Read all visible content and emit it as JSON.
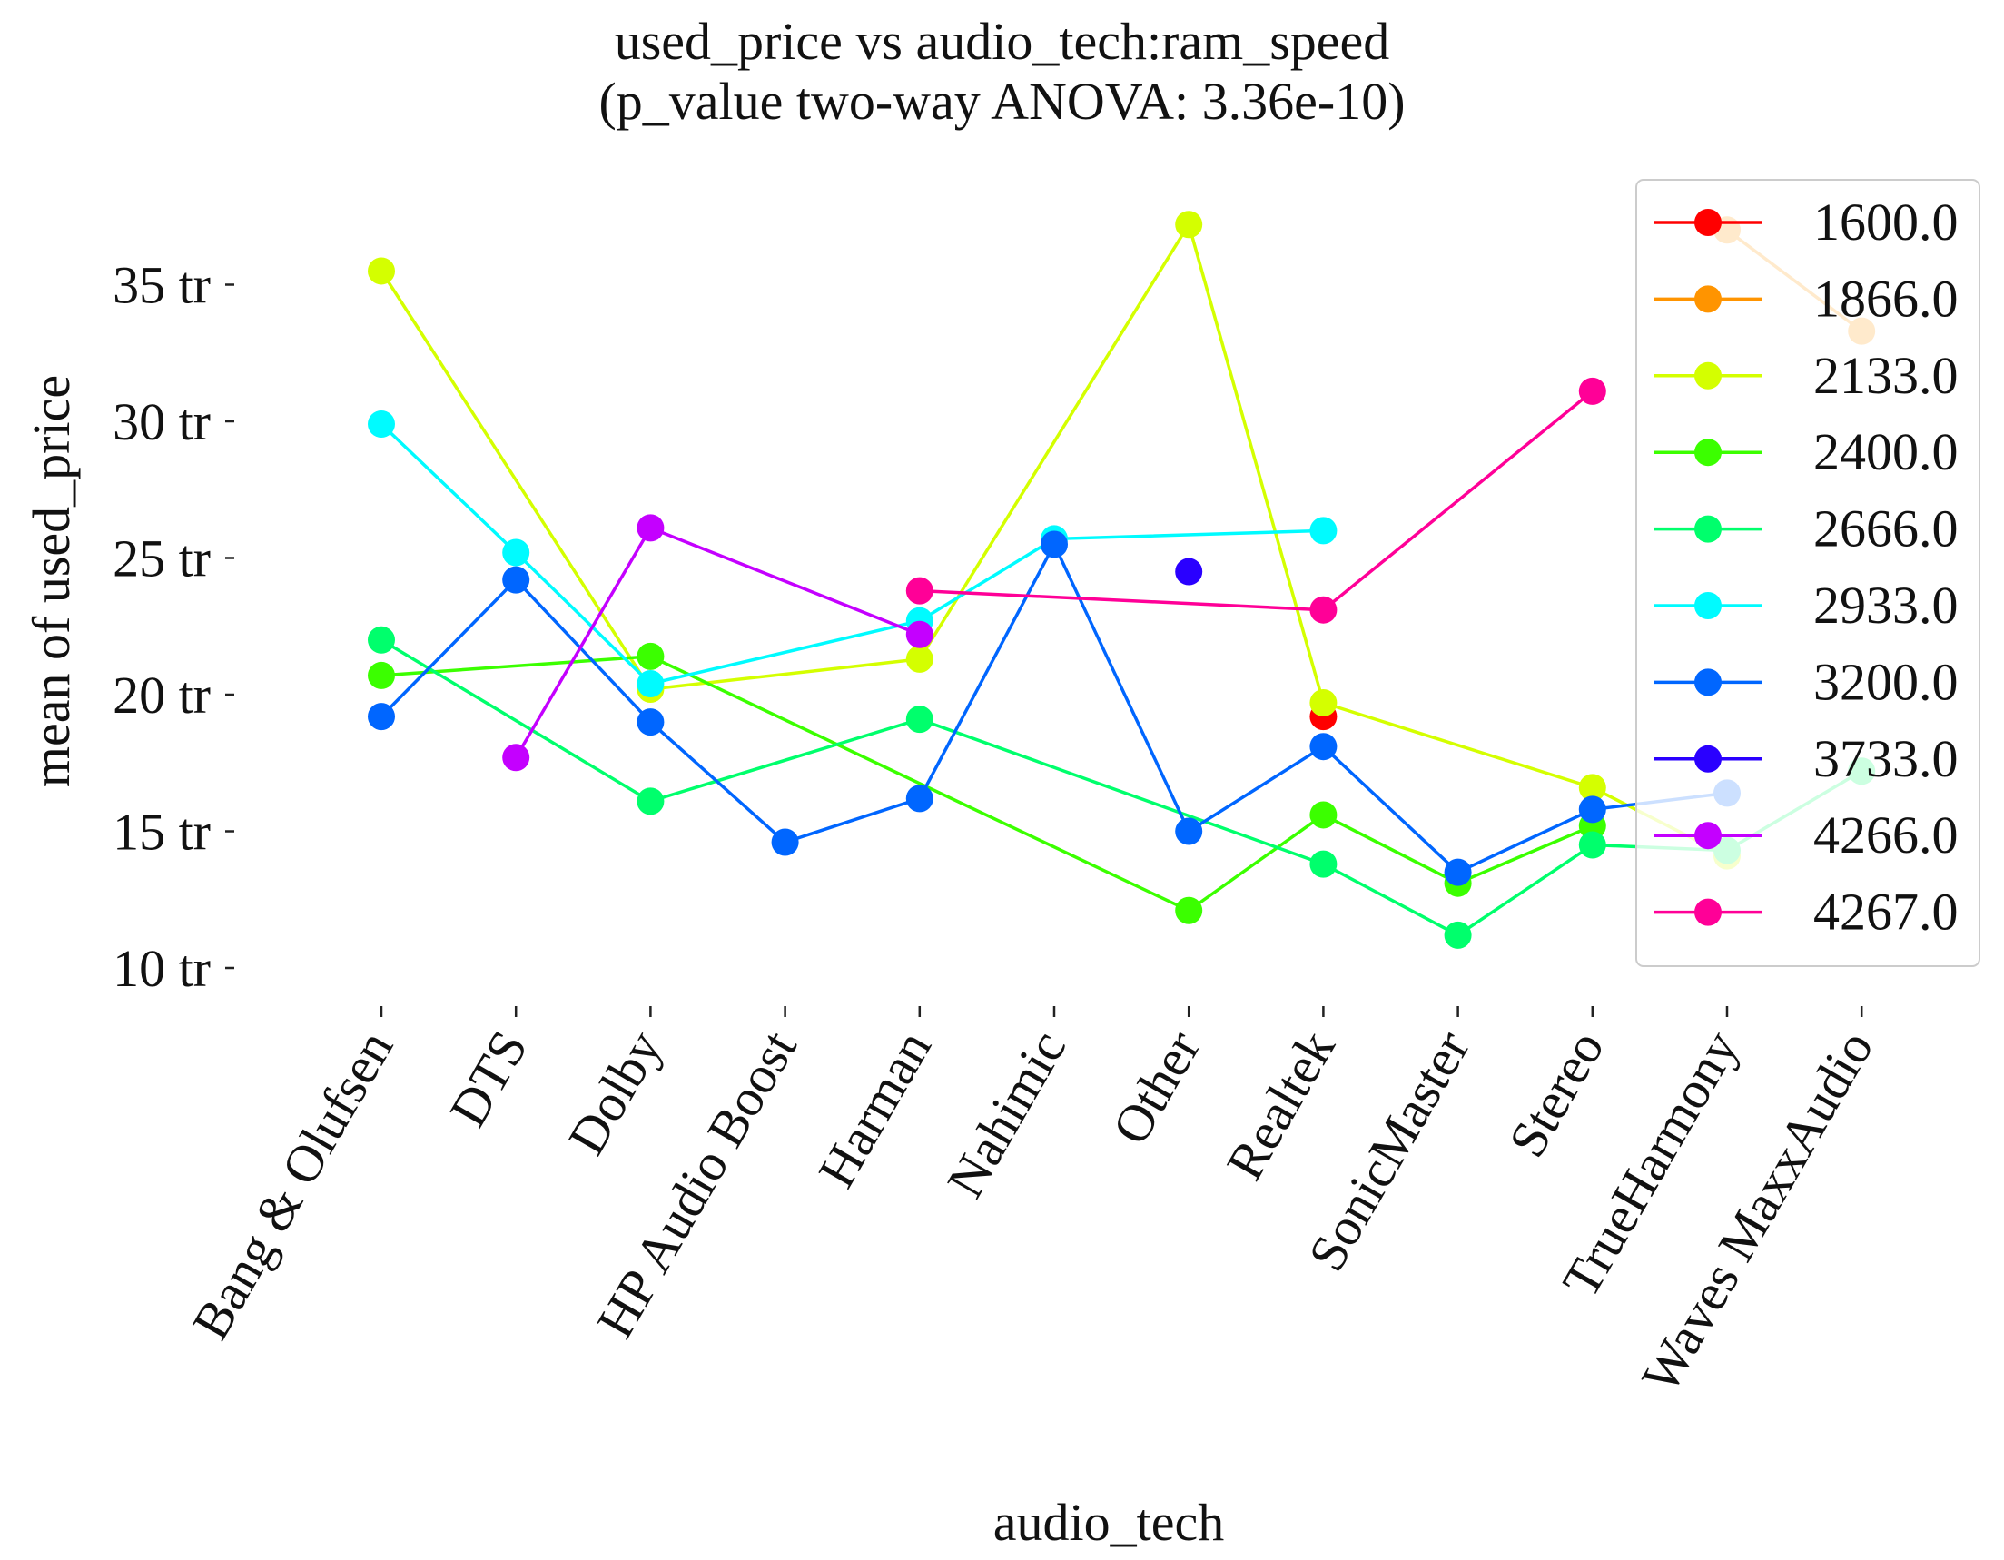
{
  "chart_data": {
    "type": "line",
    "title": "used_price vs audio_tech:ram_speed",
    "subtitle": "(p_value two-way ANOVA: 3.36e-10)",
    "xlabel": "audio_tech",
    "ylabel": "mean of used_price",
    "categories": [
      "Bang & Olufsen",
      "DTS",
      "Dolby",
      "HP Audio Boost",
      "Harman",
      "Nahimic",
      "Other",
      "Realtek",
      "SonicMaster",
      "Stereo",
      "TrueHarmony",
      "Waves MaxxAudio"
    ],
    "yticks": [
      10,
      15,
      20,
      25,
      30,
      35
    ],
    "ytick_labels": [
      "10 tr",
      "15 tr",
      "20 tr",
      "25 tr",
      "30 tr",
      "35 tr"
    ],
    "ylim": [
      8.4,
      38.3
    ],
    "grid": false,
    "legend_position": "upper right",
    "series": [
      {
        "name": "1600.0",
        "color": "#ff0000",
        "values": [
          null,
          null,
          null,
          null,
          null,
          null,
          null,
          19.2,
          null,
          null,
          null,
          null
        ]
      },
      {
        "name": "1866.0",
        "color": "#ff9400",
        "values": [
          null,
          null,
          null,
          null,
          null,
          null,
          null,
          null,
          null,
          null,
          37.0,
          33.3
        ]
      },
      {
        "name": "2133.0",
        "color": "#d4ff00",
        "values": [
          35.5,
          null,
          20.2,
          null,
          21.3,
          null,
          37.2,
          19.7,
          null,
          16.6,
          14.1,
          null
        ]
      },
      {
        "name": "2400.0",
        "color": "#3bff00",
        "values": [
          20.7,
          null,
          21.4,
          null,
          null,
          null,
          12.1,
          15.6,
          13.1,
          15.2,
          null,
          null
        ]
      },
      {
        "name": "2666.0",
        "color": "#00ff6c",
        "values": [
          22.0,
          null,
          16.1,
          null,
          19.1,
          null,
          null,
          13.8,
          11.2,
          14.5,
          14.3,
          17.2
        ]
      },
      {
        "name": "2933.0",
        "color": "#00fbff",
        "values": [
          29.9,
          25.2,
          20.4,
          null,
          22.7,
          25.7,
          null,
          26.0,
          null,
          null,
          null,
          null
        ]
      },
      {
        "name": "3200.0",
        "color": "#0066ff",
        "values": [
          19.2,
          24.2,
          19.0,
          14.6,
          16.2,
          25.5,
          15.0,
          18.1,
          13.5,
          15.8,
          16.4,
          null
        ]
      },
      {
        "name": "3733.0",
        "color": "#2a00ff",
        "values": [
          null,
          null,
          null,
          null,
          null,
          null,
          24.5,
          null,
          null,
          null,
          null,
          null
        ]
      },
      {
        "name": "4266.0",
        "color": "#c400ff",
        "values": [
          null,
          17.7,
          26.1,
          null,
          22.2,
          null,
          null,
          null,
          null,
          null,
          null,
          null
        ]
      },
      {
        "name": "4267.0",
        "color": "#ff0097",
        "values": [
          null,
          null,
          null,
          null,
          23.8,
          null,
          null,
          23.1,
          null,
          31.1,
          null,
          null
        ]
      }
    ]
  }
}
